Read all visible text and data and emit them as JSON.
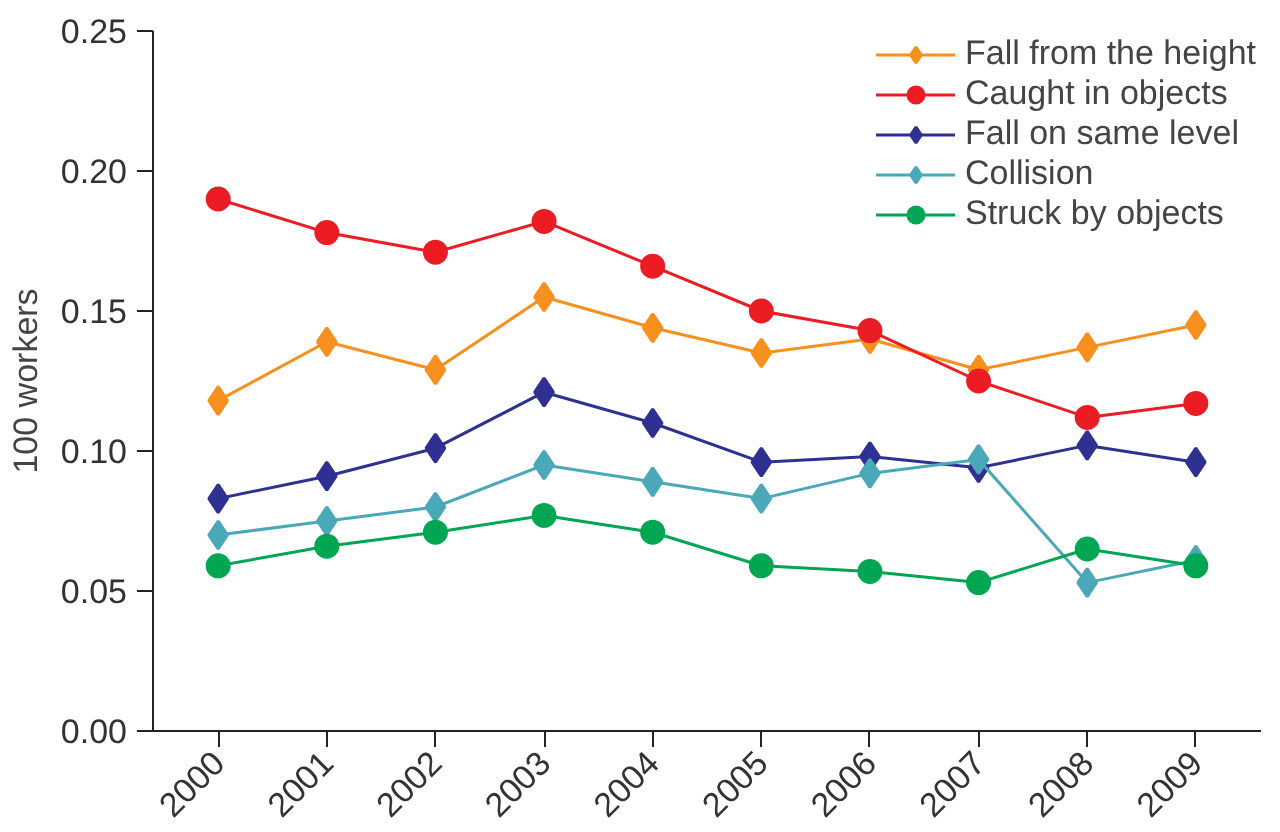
{
  "chart_data": {
    "type": "line",
    "ylabel": "100 workers",
    "categories": [
      "2000",
      "2001",
      "2002",
      "2003",
      "2004",
      "2005",
      "2006",
      "2007",
      "2008",
      "2009"
    ],
    "ylim": [
      0,
      0.25
    ],
    "yticks": [
      {
        "value": 0,
        "label": "0.00"
      },
      {
        "value": 0.05,
        "label": "0.05"
      },
      {
        "value": 0.1,
        "label": "0.10"
      },
      {
        "value": 0.15,
        "label": "0.15"
      },
      {
        "value": 0.2,
        "label": "0.20"
      },
      {
        "value": 0.25,
        "label": "0.25"
      }
    ],
    "grid": false,
    "legend": "top right",
    "series": [
      {
        "name": "Fall from the height",
        "color": "#f7901e",
        "marker": "diamond",
        "values": [
          0.118,
          0.139,
          0.129,
          0.155,
          0.144,
          0.135,
          0.14,
          0.129,
          0.137,
          0.145
        ]
      },
      {
        "name": "Caught in objects",
        "color": "#ec1c24",
        "marker": "circle",
        "values": [
          0.19,
          0.178,
          0.171,
          0.182,
          0.166,
          0.15,
          0.143,
          0.125,
          0.112,
          0.117
        ]
      },
      {
        "name": "Fall on same level",
        "color": "#2e3192",
        "marker": "diamond",
        "values": [
          0.083,
          0.091,
          0.101,
          0.121,
          0.11,
          0.096,
          0.098,
          0.094,
          0.102,
          0.096
        ]
      },
      {
        "name": "Collision",
        "color": "#4aa8b8",
        "marker": "diamond",
        "values": [
          0.07,
          0.075,
          0.08,
          0.095,
          0.089,
          0.083,
          0.092,
          0.097,
          0.053,
          0.061
        ]
      },
      {
        "name": "Struck by objects",
        "color": "#00a651",
        "marker": "circle",
        "values": [
          0.059,
          0.066,
          0.071,
          0.077,
          0.071,
          0.059,
          0.057,
          0.053,
          0.065,
          0.059
        ]
      }
    ]
  }
}
